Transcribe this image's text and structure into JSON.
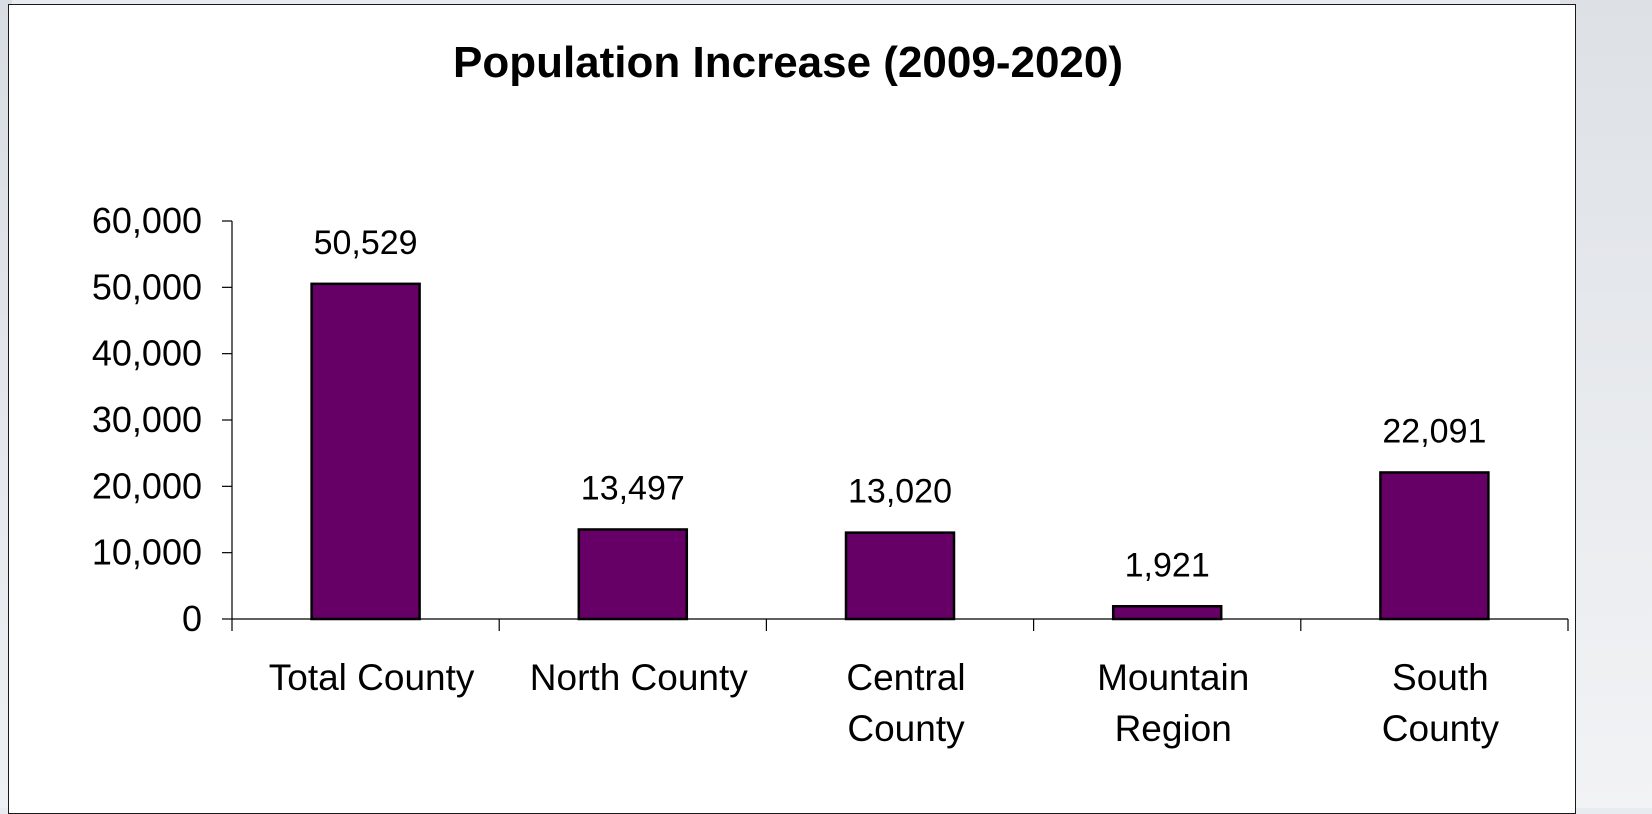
{
  "chart_data": {
    "type": "bar",
    "title": "Population Increase (2009-2020)",
    "categories": [
      [
        "Total County"
      ],
      [
        "North County"
      ],
      [
        "Central",
        "County"
      ],
      [
        "Mountain",
        "Region"
      ],
      [
        "South",
        "County"
      ]
    ],
    "values": [
      50529,
      13497,
      13020,
      1921,
      22091
    ],
    "data_labels": [
      "50,529",
      "13,497",
      "13,020",
      "1,921",
      "22,091"
    ],
    "y_ticks": [
      0,
      10000,
      20000,
      30000,
      40000,
      50000,
      60000
    ],
    "y_tick_labels": [
      "0",
      "10,000",
      "20,000",
      "30,000",
      "40,000",
      "50,000",
      "60,000"
    ],
    "ylim": [
      0,
      60000
    ],
    "xlabel": "",
    "ylabel": "",
    "grid": false,
    "legend": "none",
    "bar_color": "#660066",
    "bar_edge_color": "#000000"
  }
}
